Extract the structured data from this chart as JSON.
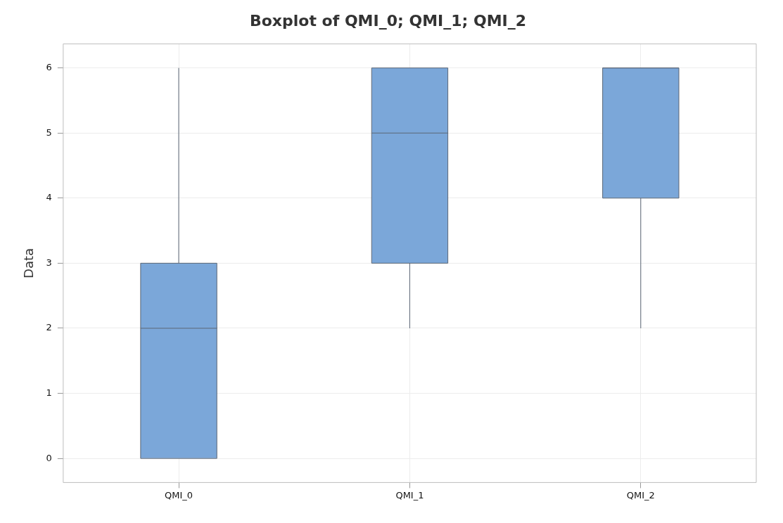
{
  "chart_data": {
    "type": "box",
    "title": "Boxplot of QMI_0; QMI_1; QMI_2",
    "ylabel": "Data",
    "categories": [
      "QMI_0",
      "QMI_1",
      "QMI_2"
    ],
    "color": "#7ba7d9",
    "boxes": [
      {
        "low": 0,
        "q1": 0,
        "median": 2,
        "q3": 3,
        "high": 6
      },
      {
        "low": 2,
        "q1": 3,
        "median": 5,
        "q3": 6,
        "high": 6
      },
      {
        "low": 2,
        "q1": 4,
        "median": 6,
        "q3": 6,
        "high": 6
      }
    ],
    "ylim": [
      -0.37,
      6.37
    ],
    "yticks": [
      0,
      1,
      2,
      3,
      4,
      5,
      6
    ],
    "grid": true,
    "legend": false
  }
}
